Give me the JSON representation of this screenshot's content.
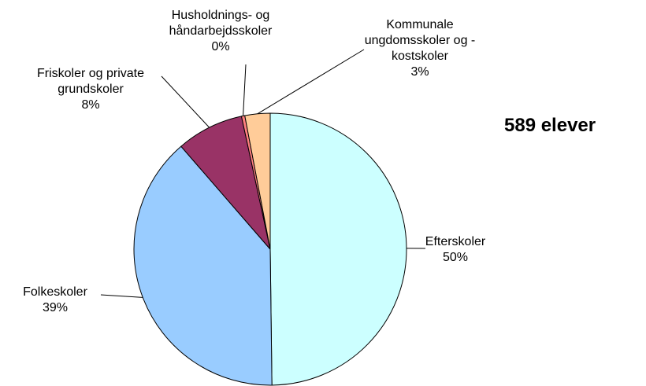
{
  "chart_data": {
    "type": "pie",
    "categories": [
      "Efterskoler",
      "Folkeskoler",
      "Friskoler og private grundskoler",
      "Husholdnings- og håndarbejdsskoler",
      "Kommunale ungdomsskoler og - kostskoler"
    ],
    "values": [
      50,
      39,
      8,
      0.4,
      3
    ],
    "value_labels": [
      "50%",
      "39%",
      "8%",
      "0%",
      "3%"
    ],
    "colors": [
      "#ccffff",
      "#99ccff",
      "#993366",
      "#ff8080",
      "#ffcc99"
    ],
    "annotation": "589 elever"
  }
}
